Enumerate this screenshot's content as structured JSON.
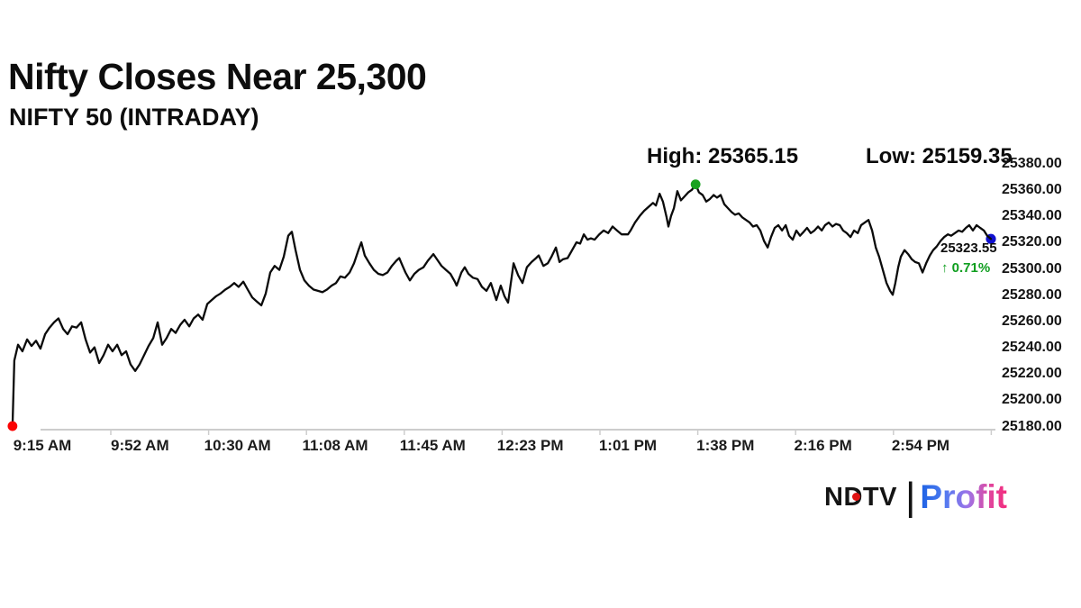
{
  "header": {
    "title": "Nifty Closes Near 25,300",
    "subtitle": "NIFTY 50 (INTRADAY)"
  },
  "logo": {
    "ndtv": "NDTV",
    "separator": "|",
    "profit": "Profit"
  },
  "chart_data": {
    "type": "line",
    "title": "NIFTY 50 (INTRADAY)",
    "legend": false,
    "grid": false,
    "x_axis": {
      "unit": "minutes from 09:15 open",
      "range": [
        0,
        375
      ],
      "tick_labels": [
        "9:15 AM",
        "9:52 AM",
        "10:30 AM",
        "11:08 AM",
        "11:45 AM",
        "12:23 PM",
        "1:01 PM",
        "1:38 PM",
        "2:16 PM",
        "2:54 PM"
      ]
    },
    "y_axis": {
      "min": 25180,
      "max": 25380,
      "tick_labels": [
        "25380.00",
        "25360.00",
        "25340.00",
        "25320.00",
        "25300.00",
        "25280.00",
        "25260.00",
        "25240.00",
        "25220.00",
        "25200.00",
        "25180.00"
      ]
    },
    "stats": {
      "high": 25365.15,
      "low": 25159.35,
      "close": 25323.55,
      "change_percent": 0.71
    },
    "annotations": {
      "high_label": "High: 25365.15",
      "low_label": "Low: 25159.35",
      "last_price": "25323.55",
      "change_arrow": "↑",
      "change_percent": "0.71%"
    },
    "markers": [
      {
        "name": "close-marker",
        "t": 375,
        "price": 25323.55,
        "color": "#1010cf",
        "layer": "under"
      },
      {
        "name": "open-marker",
        "t": 0.3,
        "price": 25181,
        "color": "#fb0404",
        "layer": "over"
      },
      {
        "name": "high-marker",
        "t": 261.9,
        "price": 25365.15,
        "color": "#18a21f",
        "layer": "over"
      }
    ],
    "series": [
      {
        "name": "NIFTY 50",
        "color": "#0b0b0b",
        "points": [
          [
            0.3,
            25181
          ],
          [
            1,
            25231
          ],
          [
            2.4,
            25243
          ],
          [
            4.1,
            25238
          ],
          [
            5.9,
            25247
          ],
          [
            7.6,
            25242
          ],
          [
            9.3,
            25246
          ],
          [
            11,
            25240
          ],
          [
            12.8,
            25251
          ],
          [
            14.5,
            25256
          ],
          [
            16.2,
            25260
          ],
          [
            17.9,
            25263
          ],
          [
            19.7,
            25255
          ],
          [
            21.4,
            25251
          ],
          [
            23.1,
            25257
          ],
          [
            24.8,
            25256
          ],
          [
            26.6,
            25260
          ],
          [
            28.3,
            25247
          ],
          [
            30,
            25237
          ],
          [
            31.7,
            25241
          ],
          [
            33.5,
            25229
          ],
          [
            35.2,
            25235
          ],
          [
            36.9,
            25243
          ],
          [
            38.6,
            25238
          ],
          [
            40.4,
            25243
          ],
          [
            42.1,
            25235
          ],
          [
            43.8,
            25238
          ],
          [
            45.5,
            25228
          ],
          [
            47.3,
            25223
          ],
          [
            49,
            25228
          ],
          [
            50.7,
            25235
          ],
          [
            52.4,
            25242
          ],
          [
            54.2,
            25248
          ],
          [
            55.9,
            25260
          ],
          [
            57.6,
            25243
          ],
          [
            59.3,
            25248
          ],
          [
            61.1,
            25255
          ],
          [
            62.8,
            25252
          ],
          [
            64.5,
            25258
          ],
          [
            66.2,
            25262
          ],
          [
            68,
            25257
          ],
          [
            69.7,
            25263
          ],
          [
            71.4,
            25266
          ],
          [
            73.1,
            25262
          ],
          [
            74.9,
            25274
          ],
          [
            76.6,
            25277
          ],
          [
            78.3,
            25280
          ],
          [
            80,
            25282
          ],
          [
            81.8,
            25285
          ],
          [
            83.5,
            25287
          ],
          [
            85.2,
            25290
          ],
          [
            86.9,
            25287
          ],
          [
            88.7,
            25291
          ],
          [
            90.4,
            25285
          ],
          [
            92.1,
            25279
          ],
          [
            93.8,
            25276
          ],
          [
            95.6,
            25273
          ],
          [
            97.3,
            25282
          ],
          [
            99,
            25298
          ],
          [
            100.7,
            25303
          ],
          [
            102.5,
            25300
          ],
          [
            104.2,
            25310
          ],
          [
            105.9,
            25326
          ],
          [
            107.3,
            25329
          ],
          [
            108.7,
            25315
          ],
          [
            110.4,
            25300
          ],
          [
            112.1,
            25292
          ],
          [
            113.8,
            25288
          ],
          [
            115.6,
            25285
          ],
          [
            117.3,
            25284
          ],
          [
            119,
            25283
          ],
          [
            120.7,
            25285
          ],
          [
            122.5,
            25288
          ],
          [
            124.2,
            25290
          ],
          [
            125.9,
            25295
          ],
          [
            127.6,
            25294
          ],
          [
            129.4,
            25298
          ],
          [
            131.1,
            25305
          ],
          [
            132.8,
            25315
          ],
          [
            133.9,
            25321
          ],
          [
            135.2,
            25311
          ],
          [
            137,
            25305
          ],
          [
            138.7,
            25300
          ],
          [
            140.4,
            25297
          ],
          [
            142.1,
            25296
          ],
          [
            143.9,
            25298
          ],
          [
            145.6,
            25303
          ],
          [
            147.3,
            25307
          ],
          [
            148.4,
            25309
          ],
          [
            149.7,
            25303
          ],
          [
            150.8,
            25298
          ],
          [
            152.5,
            25292
          ],
          [
            154.2,
            25297
          ],
          [
            155.9,
            25300
          ],
          [
            157.7,
            25302
          ],
          [
            159.4,
            25307
          ],
          [
            161.5,
            25312
          ],
          [
            163.2,
            25307
          ],
          [
            164.6,
            25303
          ],
          [
            166.3,
            25300
          ],
          [
            168,
            25297
          ],
          [
            169.7,
            25291
          ],
          [
            170.4,
            25288
          ],
          [
            172.2,
            25298
          ],
          [
            173.5,
            25302
          ],
          [
            174.9,
            25297
          ],
          [
            176.6,
            25294
          ],
          [
            178.4,
            25293
          ],
          [
            180.1,
            25287
          ],
          [
            181.8,
            25284
          ],
          [
            183.5,
            25290
          ],
          [
            185.6,
            25277
          ],
          [
            187.3,
            25288
          ],
          [
            188.7,
            25280
          ],
          [
            190.1,
            25275
          ],
          [
            191.5,
            25295
          ],
          [
            192.2,
            25305
          ],
          [
            193.9,
            25296
          ],
          [
            195.6,
            25290
          ],
          [
            197.3,
            25302
          ],
          [
            199.1,
            25306
          ],
          [
            200.8,
            25309
          ],
          [
            201.8,
            25311
          ],
          [
            203.6,
            25303
          ],
          [
            205.3,
            25305
          ],
          [
            206.7,
            25310
          ],
          [
            208.4,
            25317
          ],
          [
            209.8,
            25306
          ],
          [
            211.1,
            25308
          ],
          [
            212.9,
            25309
          ],
          [
            214.6,
            25315
          ],
          [
            216.3,
            25321
          ],
          [
            217.7,
            25320
          ],
          [
            219.1,
            25327
          ],
          [
            220.5,
            25323
          ],
          [
            221.8,
            25324
          ],
          [
            223.2,
            25323
          ],
          [
            225,
            25327
          ],
          [
            226.7,
            25330
          ],
          [
            228.4,
            25328
          ],
          [
            230.1,
            25333
          ],
          [
            231.8,
            25330
          ],
          [
            233.6,
            25327
          ],
          [
            236,
            25327
          ],
          [
            237,
            25330
          ],
          [
            238.7,
            25336
          ],
          [
            240.5,
            25341
          ],
          [
            242.2,
            25345
          ],
          [
            243.9,
            25348
          ],
          [
            245.6,
            25351
          ],
          [
            246.7,
            25349
          ],
          [
            248.1,
            25358
          ],
          [
            249.4,
            25352
          ],
          [
            250.8,
            25340
          ],
          [
            251.5,
            25333
          ],
          [
            252.5,
            25341
          ],
          [
            253.6,
            25347
          ],
          [
            254.9,
            25360
          ],
          [
            256.3,
            25353
          ],
          [
            257.7,
            25356
          ],
          [
            259.1,
            25359
          ],
          [
            260.5,
            25361
          ],
          [
            261.9,
            25365.15
          ],
          [
            263.2,
            25359
          ],
          [
            264.6,
            25357
          ],
          [
            266,
            25352
          ],
          [
            267.4,
            25354
          ],
          [
            268.8,
            25357
          ],
          [
            270.1,
            25355
          ],
          [
            271.5,
            25357
          ],
          [
            272.9,
            25350
          ],
          [
            274.3,
            25347
          ],
          [
            275.7,
            25344
          ],
          [
            277,
            25342
          ],
          [
            278.4,
            25343
          ],
          [
            279.8,
            25340
          ],
          [
            281.2,
            25338
          ],
          [
            282.6,
            25336
          ],
          [
            283.9,
            25333
          ],
          [
            285.3,
            25334
          ],
          [
            286.7,
            25330
          ],
          [
            288.1,
            25322
          ],
          [
            289.5,
            25317
          ],
          [
            290.8,
            25325
          ],
          [
            292.2,
            25332
          ],
          [
            293.6,
            25334
          ],
          [
            295,
            25330
          ],
          [
            296.4,
            25334
          ],
          [
            297.7,
            25326
          ],
          [
            299.1,
            25323
          ],
          [
            300.5,
            25330
          ],
          [
            301.9,
            25326
          ],
          [
            303.3,
            25329
          ],
          [
            304.6,
            25332
          ],
          [
            306,
            25328
          ],
          [
            307.4,
            25330
          ],
          [
            308.8,
            25333
          ],
          [
            310.2,
            25330
          ],
          [
            311.5,
            25334
          ],
          [
            312.9,
            25336
          ],
          [
            314.3,
            25333
          ],
          [
            315.7,
            25335
          ],
          [
            317.1,
            25334
          ],
          [
            318.4,
            25330
          ],
          [
            319.8,
            25328
          ],
          [
            321.2,
            25325
          ],
          [
            322.6,
            25330
          ],
          [
            324,
            25328
          ],
          [
            325.3,
            25334
          ],
          [
            326.7,
            25336
          ],
          [
            328.1,
            25338
          ],
          [
            329.5,
            25330
          ],
          [
            330.9,
            25317
          ],
          [
            332.2,
            25310
          ],
          [
            333.6,
            25300
          ],
          [
            335,
            25290
          ],
          [
            336.4,
            25284
          ],
          [
            337.4,
            25281
          ],
          [
            338.4,
            25290
          ],
          [
            339.5,
            25302
          ],
          [
            340.5,
            25310
          ],
          [
            341.9,
            25315
          ],
          [
            343.3,
            25312
          ],
          [
            344.7,
            25308
          ],
          [
            346,
            25306
          ],
          [
            347.4,
            25305
          ],
          [
            348.8,
            25298
          ],
          [
            350.2,
            25305
          ],
          [
            351.6,
            25311
          ],
          [
            352.9,
            25315
          ],
          [
            354.3,
            25318
          ],
          [
            355.7,
            25322
          ],
          [
            357.1,
            25325
          ],
          [
            358.5,
            25327
          ],
          [
            359.8,
            25326
          ],
          [
            361.2,
            25328
          ],
          [
            362.6,
            25330
          ],
          [
            364,
            25329
          ],
          [
            365.4,
            25332
          ],
          [
            366.7,
            25334
          ],
          [
            368.1,
            25330
          ],
          [
            369.5,
            25334
          ],
          [
            370.9,
            25332
          ],
          [
            372.3,
            25330
          ],
          [
            373.6,
            25326
          ],
          [
            375,
            25323.55
          ]
        ]
      }
    ]
  }
}
